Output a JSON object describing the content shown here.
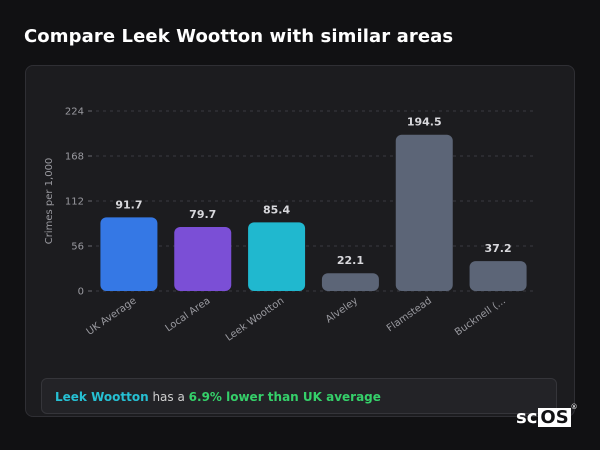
{
  "page": {
    "title": "Compare Leek Wootton with similar areas"
  },
  "chart_data": {
    "type": "bar",
    "ylabel": "Crimes per 1,000",
    "xlabel": "",
    "ylim": [
      0,
      224
    ],
    "yticks": [
      0,
      56,
      112,
      168,
      224
    ],
    "grid": true,
    "categories": [
      "UK Average",
      "Local Area",
      "Leek Wootton",
      "Alveley",
      "Flamstead",
      "Bucknell (..."
    ],
    "values": [
      91.7,
      79.7,
      85.4,
      22.1,
      194.5,
      37.2
    ],
    "value_labels": [
      "91.7",
      "79.7",
      "85.4",
      "22.1",
      "194.5",
      "37.2"
    ],
    "colors": [
      "#3578e5",
      "#7b4fd6",
      "#20b8cf",
      "#5c6577",
      "#5c6577",
      "#5c6577"
    ]
  },
  "summary": {
    "place": "Leek Wootton",
    "middle": " has a ",
    "delta": "6.9% lower than UK average"
  },
  "logo": {
    "sc": "sc",
    "os": "OS",
    "reg": "®"
  },
  "colors": {
    "background": "#111113",
    "card": "#1c1c1f",
    "accent_place": "#26c0d3",
    "accent_delta": "#35d06a"
  }
}
